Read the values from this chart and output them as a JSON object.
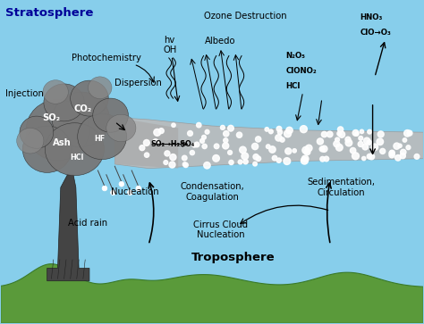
{
  "bg_sky": "#87CEEB",
  "bg_sky_light": "#A8D8EA",
  "ground_color": "#5A9A3A",
  "ground_dark": "#3A7A2A",
  "volcano_dark": "#444444",
  "volcano_mid": "#666666",
  "smoke_dark": "#555555",
  "smoke_mid": "#777777",
  "plume_light": "#BBBBBB",
  "plume_mid": "#AAAAAA",
  "labels": {
    "stratosphere": "Stratosphere",
    "troposphere": "Troposphere",
    "ozone": "Ozone Destruction",
    "injection": "Injection",
    "dispersion": "Dispersion",
    "photochem": "Photochemistry",
    "nucleation": "Nucleation",
    "acid_rain": "Acid rain",
    "condensation": "Condensation,\nCoagulation",
    "sedimentation": "Sedimentation,\nCirculation",
    "cirrus": "Cirrus Cloud\nNucleation",
    "albedo": "Albedo",
    "hv_oh": "hv\nOH",
    "n2o5": "N₂O₅",
    "clono2": "ClONO₂",
    "hcl_strat": "HCl",
    "hno3": "HNO₃",
    "clo_o3": "ClO→O₃",
    "so2_h2so4": "SO₂→H₂SO₄",
    "so2_cloud": "SO₂",
    "co2_cloud": "CO₂",
    "hf_cloud": "HF",
    "ash_cloud": "Ash",
    "hcl_cloud": "HCl"
  },
  "figsize": [
    4.74,
    3.63
  ],
  "dpi": 100
}
